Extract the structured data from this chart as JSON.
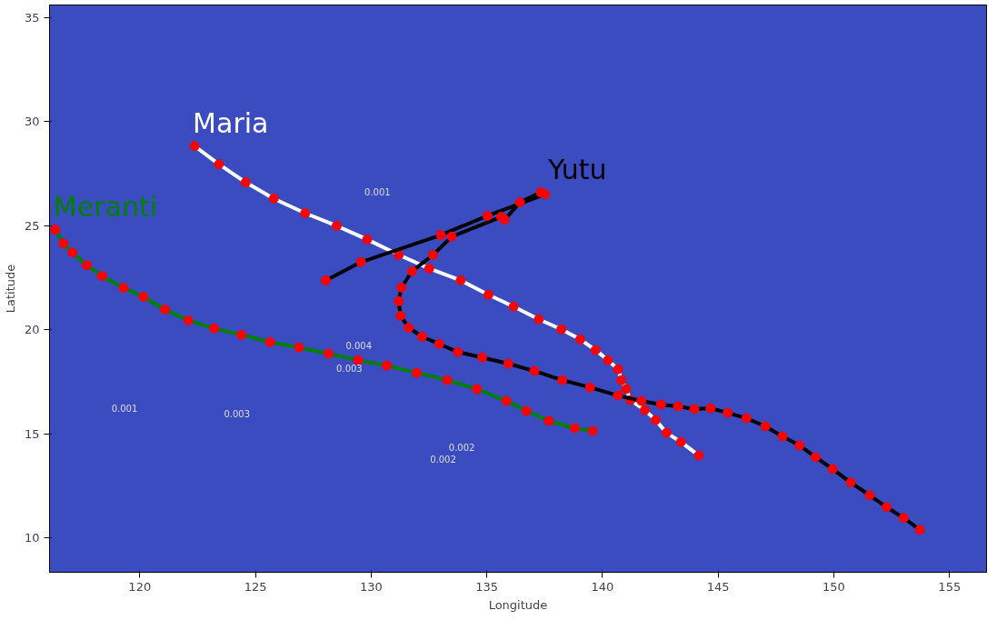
{
  "chart_data": {
    "type": "line",
    "xlabel": "Longitude",
    "ylabel": "Latitude",
    "xlim": [
      116.1,
      156.6
    ],
    "ylim": [
      8.35,
      35.6
    ],
    "xticks": [
      120,
      125,
      130,
      135,
      140,
      145,
      150,
      155
    ],
    "yticks": [
      10,
      15,
      20,
      25,
      30,
      35
    ],
    "grid": false,
    "marker": "circle",
    "line_style": "solid",
    "series": [
      {
        "name": "Maria",
        "color": "#ffffff",
        "colors": [
          "#ff0000",
          "#ff0000",
          "#ff0000",
          "#ff0000",
          "#ff0000",
          "#ff0000",
          "#ff0000",
          "#ff0000",
          "#ff0000",
          "#ff0000",
          "#ff0000",
          "#ff0000",
          "#ff0000",
          "#ff0000",
          "#ff0000",
          "#ff0000",
          "#ff0000",
          "#ff0000",
          "#ff0000",
          "#ff0000",
          "#ff0000",
          "#ff0000",
          "#ff0000",
          "#ff0000",
          "#ff0000",
          "#ff0000"
        ],
        "x": [
          122.37,
          123.42,
          124.58,
          125.79,
          127.15,
          128.51,
          129.83,
          131.19,
          132.51,
          133.87,
          135.07,
          136.16,
          137.25,
          138.22,
          139.04,
          139.7,
          140.24,
          140.67,
          140.82,
          141.02,
          141.21,
          141.83,
          142.3,
          142.77,
          143.39,
          144.16
        ],
        "values": [
          28.82,
          27.95,
          27.08,
          26.3,
          25.6,
          24.99,
          24.34,
          23.6,
          22.94,
          22.37,
          21.68,
          21.11,
          20.5,
          20.02,
          19.54,
          19.02,
          18.54,
          18.1,
          17.58,
          17.15,
          16.62,
          16.14,
          15.66,
          15.05,
          14.61,
          13.96
        ]
      },
      {
        "name": "Meranti",
        "color": "#008000",
        "colors": [
          "#ff0000",
          "#ff0000",
          "#ff0000",
          "#ff0000",
          "#ff0000",
          "#ff0000",
          "#ff0000",
          "#ff0000",
          "#ff0000",
          "#ff0000",
          "#ff0000",
          "#ff0000",
          "#ff0000",
          "#ff0000",
          "#ff0000",
          "#ff0000",
          "#ff0000",
          "#ff0000",
          "#ff0000",
          "#ff0000",
          "#ff0000",
          "#ff0000",
          "#ff0000",
          "#ff0000"
        ],
        "x": [
          116.35,
          116.7,
          117.09,
          117.71,
          118.37,
          119.3,
          120.16,
          121.09,
          122.1,
          123.22,
          124.39,
          125.63,
          126.88,
          128.16,
          129.44,
          130.68,
          131.97,
          133.29,
          134.57,
          135.85,
          136.71,
          137.68,
          138.8,
          139.58
        ],
        "values": [
          24.81,
          24.15,
          23.71,
          23.1,
          22.58,
          22.01,
          21.58,
          20.97,
          20.45,
          20.06,
          19.76,
          19.41,
          19.15,
          18.85,
          18.54,
          18.28,
          17.93,
          17.58,
          17.15,
          16.58,
          16.1,
          15.62,
          15.27,
          15.14
        ]
      },
      {
        "name": "Yutu",
        "color": "#000000",
        "colors": [
          "#ff0000",
          "#ff0000",
          "#ff0000",
          "#ff0000",
          "#ff0000",
          "#ff0000",
          "#ff0000",
          "#ff0000",
          "#ff0000",
          "#ff0000",
          "#ff0000",
          "#ff0000",
          "#ff0000",
          "#ff0000",
          "#ff0000",
          "#ff0000",
          "#ff0000",
          "#ff0000",
          "#ff0000",
          "#ff0000",
          "#ff0000",
          "#ff0000",
          "#ff0000",
          "#ff0000",
          "#ff0000",
          "#ff0000",
          "#ff0000",
          "#ff0000",
          "#ff0000",
          "#ff0000",
          "#ff0000",
          "#ff0000",
          "#ff0000",
          "#ff0000",
          "#ff0000",
          "#ff0000",
          "#ff0000",
          "#ff0000",
          "#ff0000",
          "#ff0000",
          "#ff0000",
          "#ff0000"
        ],
        "x": [
          153.72,
          153.02,
          152.28,
          151.55,
          150.73,
          149.95,
          149.21,
          148.52,
          147.78,
          147.04,
          146.22,
          145.41,
          144.67,
          143.97,
          143.27,
          142.53,
          141.68,
          140.67,
          139.46,
          138.26,
          137.06,
          135.93,
          134.8,
          133.75,
          132.94,
          132.2,
          131.62,
          131.27,
          131.19,
          131.31,
          131.77,
          132.67,
          133.48,
          135.62,
          135.77,
          136.43,
          137.33,
          137.52,
          135.03,
          133.01,
          129.56,
          128.04
        ],
        "values": [
          10.39,
          10.96,
          11.48,
          12.05,
          12.66,
          13.31,
          13.88,
          14.44,
          14.88,
          15.36,
          15.75,
          16.01,
          16.23,
          16.19,
          16.32,
          16.41,
          16.58,
          16.84,
          17.23,
          17.58,
          18.02,
          18.37,
          18.67,
          18.93,
          19.32,
          19.67,
          20.1,
          20.67,
          21.37,
          22.03,
          22.81,
          23.59,
          24.47,
          25.42,
          25.29,
          26.12,
          26.6,
          26.51,
          25.47,
          24.55,
          23.25,
          22.37
        ]
      }
    ],
    "annotations": [
      "0.001",
      "0.001",
      "0.002",
      "0.002",
      "0.003",
      "0.003",
      "0.004"
    ]
  }
}
